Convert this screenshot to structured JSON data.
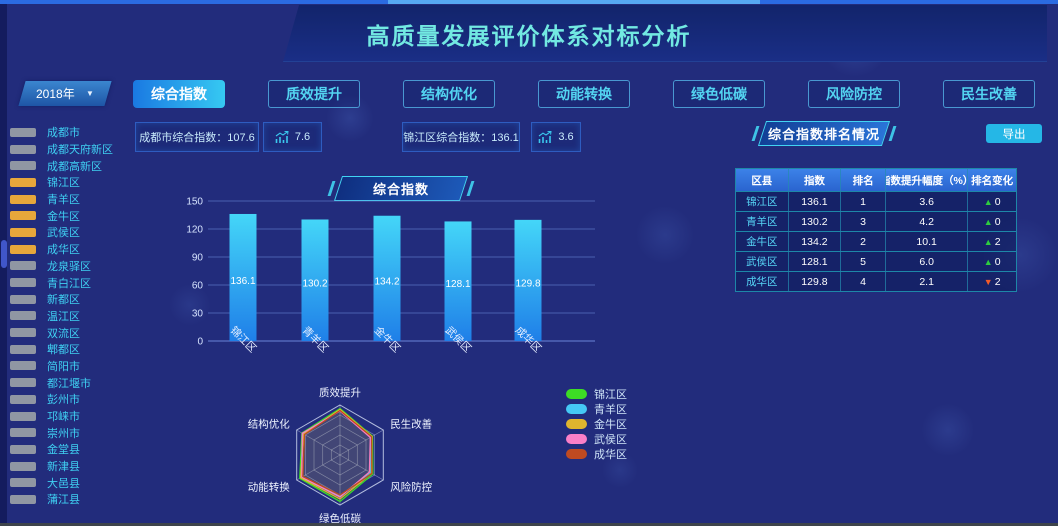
{
  "page_title": "高质量发展评价体系对标分析",
  "year_selector": {
    "value": "2018年",
    "caret": "▼"
  },
  "icons": {
    "caret_down": "▼",
    "rank_up": "▲",
    "rank_down": "▼",
    "trend_icon": "trend-up-chart"
  },
  "sidebar": {
    "districts": [
      {
        "label": "成都市",
        "checked": false
      },
      {
        "label": "成都天府新区",
        "checked": false
      },
      {
        "label": "成都高新区",
        "checked": false
      },
      {
        "label": "锦江区",
        "checked": true
      },
      {
        "label": "青羊区",
        "checked": true
      },
      {
        "label": "金牛区",
        "checked": true
      },
      {
        "label": "武侯区",
        "checked": true
      },
      {
        "label": "成华区",
        "checked": true
      },
      {
        "label": "龙泉驿区",
        "checked": false
      },
      {
        "label": "青白江区",
        "checked": false
      },
      {
        "label": "新都区",
        "checked": false
      },
      {
        "label": "温江区",
        "checked": false
      },
      {
        "label": "双流区",
        "checked": false
      },
      {
        "label": "郫都区",
        "checked": false
      },
      {
        "label": "简阳市",
        "checked": false
      },
      {
        "label": "都江堰市",
        "checked": false
      },
      {
        "label": "彭州市",
        "checked": false
      },
      {
        "label": "邛崃市",
        "checked": false
      },
      {
        "label": "崇州市",
        "checked": false
      },
      {
        "label": "金堂县",
        "checked": false
      },
      {
        "label": "新津县",
        "checked": false
      },
      {
        "label": "大邑县",
        "checked": false
      },
      {
        "label": "蒲江县",
        "checked": false
      }
    ]
  },
  "tabs": [
    {
      "label": "综合指数",
      "active": true
    },
    {
      "label": "质效提升",
      "active": false
    },
    {
      "label": "结构优化",
      "active": false
    },
    {
      "label": "动能转换",
      "active": false
    },
    {
      "label": "绿色低碳",
      "active": false
    },
    {
      "label": "风险防控",
      "active": false
    },
    {
      "label": "民生改善",
      "active": false
    }
  ],
  "summary": {
    "city_text": "成都市综合指数：107.6",
    "city_delta": "7.6",
    "district_text": "锦江区综合指数：136.1",
    "district_delta": "3.6"
  },
  "chart_data": [
    {
      "type": "bar",
      "title": "综合指数",
      "categories": [
        "锦江区",
        "青羊区",
        "金牛区",
        "武侯区",
        "成华区"
      ],
      "values": [
        136.1,
        130.2,
        134.2,
        128.1,
        129.8
      ],
      "xlabel": "",
      "ylabel": "",
      "ylim": [
        0,
        150
      ],
      "yticks": [
        0,
        30,
        60,
        90,
        120,
        150
      ],
      "grid": true,
      "value_labels": true,
      "bar_color_top": "#44d6f8",
      "bar_color_bottom": "#1f7fe8"
    },
    {
      "type": "radar",
      "axes": [
        "质效提升",
        "民生改善",
        "风险防控",
        "绿色低碳",
        "动能转换",
        "结构优化"
      ],
      "max": 100,
      "levels": 5,
      "legend_position": "right",
      "series": [
        {
          "name": "锦江区",
          "color": "#3ddd25",
          "values": [
            93,
            75,
            76,
            93,
            93,
            88
          ]
        },
        {
          "name": "青羊区",
          "color": "#45c8f5",
          "values": [
            90,
            72,
            70,
            82,
            90,
            86
          ]
        },
        {
          "name": "金牛区",
          "color": "#dfb52e",
          "values": [
            91,
            74,
            73,
            88,
            91,
            84
          ]
        },
        {
          "name": "武侯区",
          "color": "#fa7fc8",
          "values": [
            88,
            70,
            68,
            84,
            88,
            87
          ]
        },
        {
          "name": "成华区",
          "color": "#bf4a21",
          "values": [
            89,
            73,
            74,
            80,
            86,
            82
          ]
        }
      ]
    }
  ],
  "rank_panel": {
    "title": "综合指数排名情况",
    "export_label": "导出",
    "table": {
      "headers": [
        "区县",
        "指数",
        "排名",
        "指数提升幅度（%）",
        "排名变化"
      ],
      "rows": [
        {
          "district": "锦江区",
          "index": "136.1",
          "rank": "1",
          "improve": "3.6",
          "change": "0",
          "direction": "up"
        },
        {
          "district": "青羊区",
          "index": "130.2",
          "rank": "3",
          "improve": "4.2",
          "change": "0",
          "direction": "up"
        },
        {
          "district": "金牛区",
          "index": "134.2",
          "rank": "2",
          "improve": "10.1",
          "change": "2",
          "direction": "up"
        },
        {
          "district": "武侯区",
          "index": "128.1",
          "rank": "5",
          "improve": "6.0",
          "change": "0",
          "direction": "up"
        },
        {
          "district": "成华区",
          "index": "129.8",
          "rank": "4",
          "improve": "2.1",
          "change": "2",
          "direction": "down"
        }
      ]
    }
  },
  "colors": {
    "background": "#222c7c",
    "title_text": "#72e9e2",
    "accent_cyan": "#41d4f2",
    "active_tab_gradient": [
      "#1a79e2",
      "#36c9f2"
    ],
    "checked_checkbox": "#e7a73b",
    "unchecked_checkbox": "#9097a3",
    "table_header": "#2f6fd8",
    "export_button": "#25b7e6",
    "rank_up": "#2ecc40",
    "rank_down": "#f25a29"
  }
}
